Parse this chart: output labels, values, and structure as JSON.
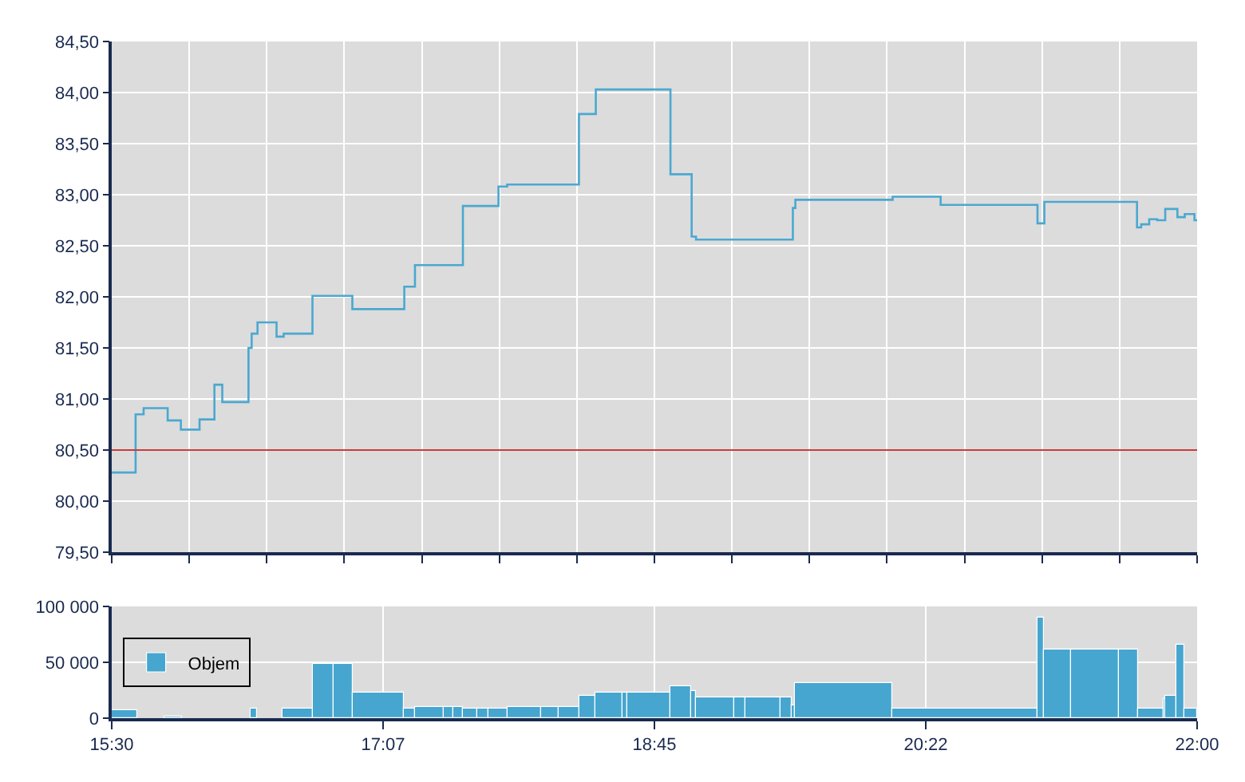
{
  "chart_data": [
    {
      "type": "step",
      "x": [
        15.5,
        15.643,
        15.691,
        15.835,
        15.914,
        16.026,
        16.115,
        16.162,
        16.319,
        16.338,
        16.373,
        16.487,
        16.53,
        16.702,
        16.941,
        17.252,
        17.316,
        17.603,
        17.816,
        17.868,
        18.298,
        18.399,
        18.846,
        18.973,
        18.999,
        19.579,
        19.594,
        20.177,
        20.464,
        21.044,
        21.085,
        21.64,
        21.665,
        21.713,
        21.761,
        21.809,
        21.882,
        21.926,
        21.984,
        22.0
      ],
      "series": [
        {
          "color": "#4aa8d0",
          "values": [
            80.28,
            80.85,
            80.91,
            80.79,
            80.7,
            80.8,
            81.14,
            80.97,
            81.5,
            81.64,
            81.75,
            81.61,
            81.64,
            82.01,
            81.88,
            82.1,
            82.31,
            82.89,
            83.08,
            83.1,
            83.79,
            84.03,
            83.2,
            82.59,
            82.56,
            82.87,
            82.95,
            82.98,
            82.9,
            82.72,
            82.93,
            82.68,
            82.71,
            82.76,
            82.75,
            82.86,
            82.78,
            82.81,
            82.75,
            82.75
          ]
        }
      ],
      "xlim": [
        15.5,
        22.0
      ],
      "xticks": [
        {
          "value": 15.5,
          "label": null
        },
        {
          "value": 15.964,
          "label": null
        },
        {
          "value": 16.429,
          "label": null
        },
        {
          "value": 16.893,
          "label": null
        },
        {
          "value": 17.357,
          "label": null
        },
        {
          "value": 17.821,
          "label": null
        },
        {
          "value": 18.286,
          "label": null
        },
        {
          "value": 18.75,
          "label": null
        },
        {
          "value": 19.214,
          "label": null
        },
        {
          "value": 19.679,
          "label": null
        },
        {
          "value": 20.143,
          "label": null
        },
        {
          "value": 20.607,
          "label": null
        },
        {
          "value": 21.071,
          "label": null
        },
        {
          "value": 21.536,
          "label": null
        },
        {
          "value": 22.0,
          "label": null
        }
      ],
      "ylim": [
        79.5,
        84.5
      ],
      "yticks": [
        {
          "value": 79.5,
          "label": "79,50"
        },
        {
          "value": 80.0,
          "label": "80,00"
        },
        {
          "value": 80.5,
          "label": "80,50"
        },
        {
          "value": 81.0,
          "label": "81,00"
        },
        {
          "value": 81.5,
          "label": "81,50"
        },
        {
          "value": 82.0,
          "label": "82,00"
        },
        {
          "value": 82.5,
          "label": "82,50"
        },
        {
          "value": 83.0,
          "label": "83,00"
        },
        {
          "value": 83.5,
          "label": "83,50"
        },
        {
          "value": 84.0,
          "label": "84,00"
        },
        {
          "value": 84.5,
          "label": "84,50"
        }
      ],
      "ref_lines": [
        {
          "axis": "y",
          "value": 80.5,
          "color": "#c83c3c"
        }
      ],
      "grid": true,
      "legend": false,
      "tick_labels": "y"
    },
    {
      "type": "bar",
      "x": [
        15.575,
        15.734,
        15.8695,
        16.125,
        16.348,
        16.4435,
        16.612,
        16.7685,
        16.887,
        17.0935,
        17.281,
        17.4005,
        17.5165,
        17.5755,
        17.6445,
        17.72,
        17.8125,
        17.9695,
        18.1235,
        18.2385,
        18.3455,
        18.4775,
        18.575,
        18.717,
        18.9095,
        18.986,
        19.115,
        19.264,
        19.399,
        19.5365,
        19.5815,
        19.881,
        20.6075,
        21.063,
        21.165,
        21.39,
        21.5875,
        21.721,
        21.804,
        21.841,
        21.8985,
        21.962
      ],
      "series": [
        {
          "name": "Objem",
          "color": "#46a6cf",
          "values": [
            7000,
            null,
            1000,
            null,
            9000,
            null,
            9000,
            49000,
            49000,
            23000,
            9000,
            10000,
            10000,
            10000,
            9000,
            9000,
            9000,
            10000,
            10000,
            10000,
            20000,
            23000,
            23000,
            23000,
            28000,
            24000,
            19000,
            19000,
            19000,
            19000,
            12000,
            32000,
            9000,
            90000,
            62000,
            62000,
            62000,
            9000,
            17000,
            20000,
            66000,
            9000
          ]
        }
      ],
      "xlim": [
        15.5,
        22.0
      ],
      "xticks": [
        {
          "value": 15.5,
          "label": "15:30"
        },
        {
          "value": 17.125,
          "label": "17:07"
        },
        {
          "value": 18.75,
          "label": "18:45"
        },
        {
          "value": 20.375,
          "label": "20:22"
        },
        {
          "value": 22.0,
          "label": "22:00"
        }
      ],
      "ylim": [
        0,
        100000
      ],
      "yticks": [
        {
          "value": 0,
          "label": "0"
        },
        {
          "value": 50000,
          "label": "50 000"
        },
        {
          "value": 100000,
          "label": "100 000"
        }
      ],
      "grid": true,
      "legend": "left"
    }
  ]
}
